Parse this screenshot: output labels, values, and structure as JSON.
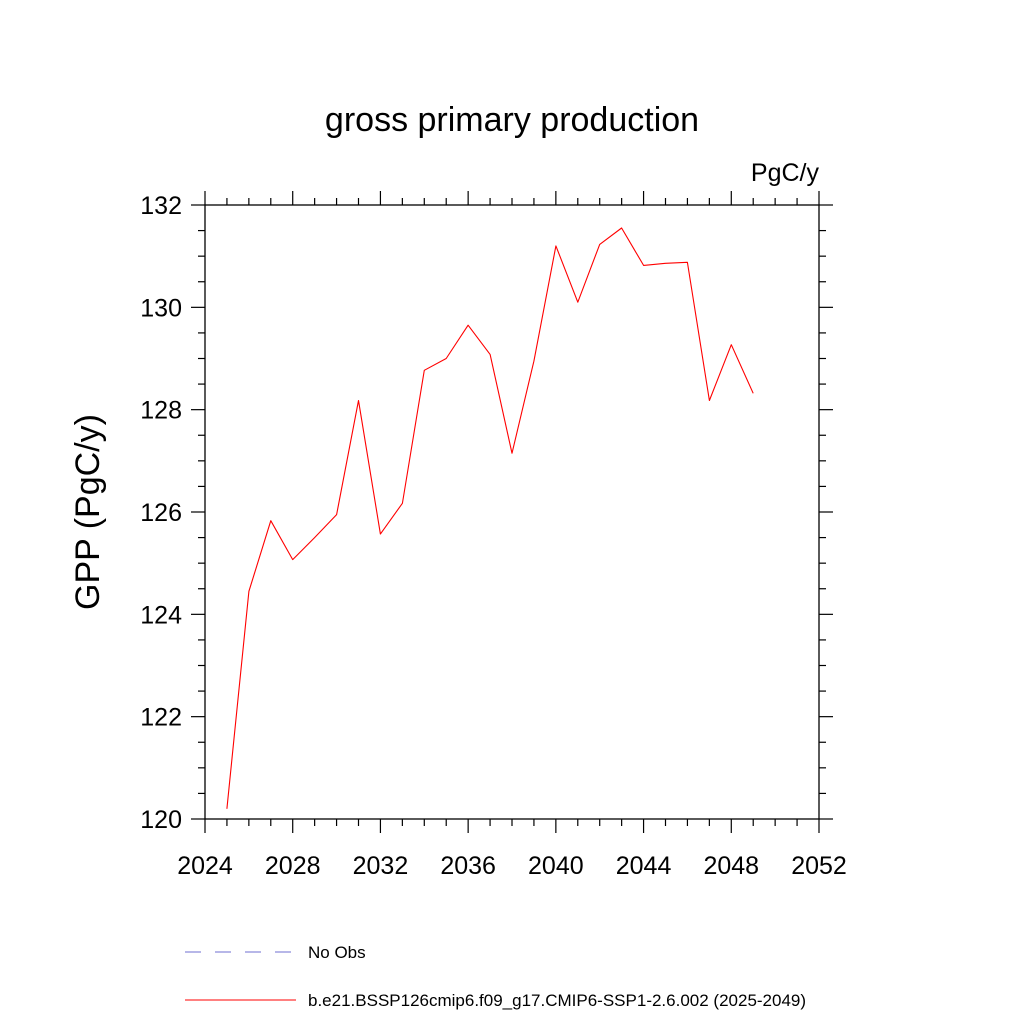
{
  "chart_data": {
    "type": "line",
    "title": "gross primary production",
    "units": "PgC/y",
    "ylabel": "GPP  (PgC/y)",
    "xlabel": "",
    "xlim": [
      2024,
      2052
    ],
    "ylim": [
      120,
      132
    ],
    "xticks": [
      2024,
      2028,
      2032,
      2036,
      2040,
      2044,
      2048,
      2052
    ],
    "yticks": [
      120,
      122,
      124,
      126,
      128,
      130,
      132
    ],
    "x": [
      2025,
      2026,
      2027,
      2028,
      2029,
      2030,
      2031,
      2032,
      2033,
      2034,
      2035,
      2036,
      2037,
      2038,
      2039,
      2040,
      2041,
      2042,
      2043,
      2044,
      2045,
      2046,
      2047,
      2048,
      2049
    ],
    "series": [
      {
        "name": "b.e21.BSSP126cmip6.f09_g17.CMIP6-SSP1-2.6.002 (2025-2049)",
        "color": "#ff0000",
        "style": "solid",
        "values": [
          120.2,
          124.45,
          125.83,
          125.07,
          125.5,
          125.95,
          128.18,
          125.57,
          126.17,
          128.77,
          129.0,
          129.65,
          129.08,
          127.15,
          128.95,
          131.2,
          130.1,
          131.23,
          131.55,
          130.82,
          130.86,
          130.88,
          128.18,
          129.27,
          128.32
        ]
      }
    ],
    "legend": {
      "placement": "bottom",
      "entries": [
        {
          "label": "No Obs",
          "color": "#6f6fd2",
          "style": "dashed"
        },
        {
          "label": "b.e21.BSSP126cmip6.f09_g17.CMIP6-SSP1-2.6.002 (2025-2049)",
          "color": "#ff0000",
          "style": "solid"
        }
      ]
    },
    "grid": false
  }
}
